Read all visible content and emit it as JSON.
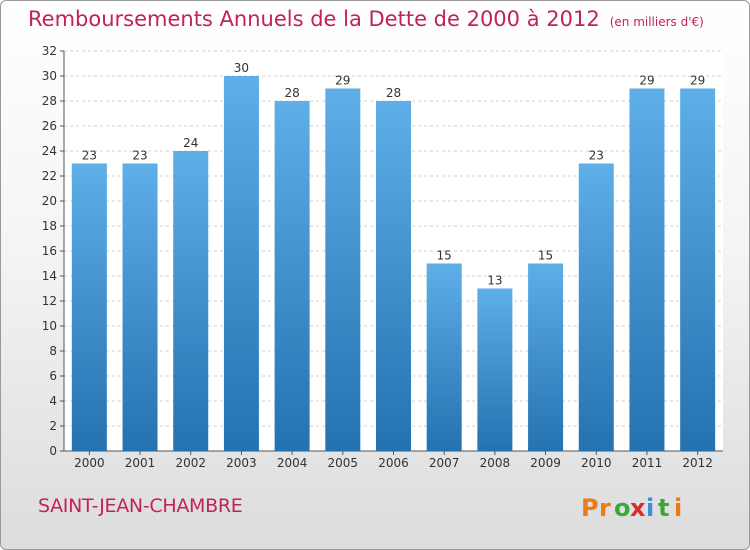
{
  "title": "Remboursements Annuels de la Dette de 2000 à 2012",
  "unit": "(en milliers d'€)",
  "commune": "SAINT-JEAN-CHAMBRE",
  "logo": {
    "text": "Proxiti",
    "letters": [
      "P",
      "r",
      "o",
      "x",
      "i",
      "t",
      "i"
    ],
    "colors": [
      "#e87d16",
      "#e87d16",
      "#3aa836",
      "#d62c2c",
      "#3a8fd6",
      "#3aa836",
      "#e87d16"
    ]
  },
  "colors": {
    "bar_light": "#5eaee8",
    "bar_dark": "#2472b0",
    "title": "#c0225a",
    "grid": "#d2d2d2"
  },
  "chart_data": {
    "type": "bar",
    "title": "Remboursements Annuels de la Dette de 2000 à 2012",
    "categories": [
      "2000",
      "2001",
      "2002",
      "2003",
      "2004",
      "2005",
      "2006",
      "2007",
      "2008",
      "2009",
      "2010",
      "2011",
      "2012"
    ],
    "values": [
      23,
      23,
      24,
      30,
      28,
      29,
      28,
      15,
      13,
      15,
      23,
      29,
      29
    ],
    "ylim": [
      0,
      32
    ],
    "yticks": [
      0,
      2,
      4,
      6,
      8,
      10,
      12,
      14,
      16,
      18,
      20,
      22,
      24,
      26,
      28,
      30,
      32
    ],
    "grid": true,
    "data_labels": true
  }
}
